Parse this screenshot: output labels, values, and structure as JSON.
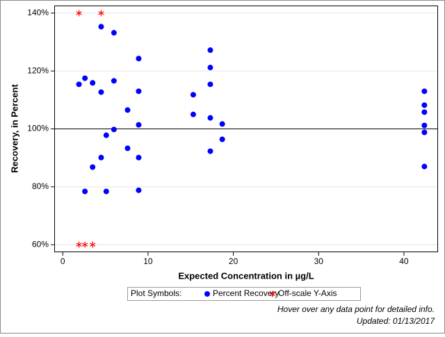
{
  "chart_data": {
    "type": "scatter",
    "x_label": "Expected Concentration in µg/L",
    "y_label": "Recovery, in Percent",
    "xlim": [
      -1,
      44
    ],
    "ylim": [
      57.4,
      142.6
    ],
    "xticks": [
      0,
      10,
      20,
      30,
      40
    ],
    "yticks": [
      {
        "value": 60,
        "label": "60%"
      },
      {
        "value": 80,
        "label": "80%"
      },
      {
        "value": 100,
        "label": "100%"
      },
      {
        "value": 120,
        "label": "120%"
      },
      {
        "value": 140,
        "label": "140%"
      }
    ],
    "grid": true,
    "reference_line": 100,
    "legend_title": "Plot Symbols:",
    "series": [
      {
        "name": "Percent Recovery",
        "color": "#0000ff",
        "marker": "circle",
        "x": [
          1.9,
          2.6,
          2.6,
          3.5,
          3.5,
          4.5,
          4.5,
          4.5,
          5.1,
          5.1,
          6.0,
          6.0,
          6.0,
          7.6,
          7.6,
          8.9,
          8.9,
          8.9,
          8.9,
          8.9,
          15.3,
          15.3,
          17.3,
          17.3,
          17.3,
          17.3,
          17.3,
          18.7,
          18.7,
          42.4,
          42.4,
          42.4,
          42.4,
          42.4,
          42.4
        ],
        "values": [
          115.4,
          117.5,
          78.4,
          115.9,
          86.8,
          135.3,
          112.7,
          90.1,
          97.8,
          78.4,
          133.2,
          116.6,
          99.8,
          106.5,
          93.3,
          124.3,
          113.0,
          101.4,
          90.1,
          78.8,
          111.8,
          105.0,
          127.2,
          121.2,
          115.4,
          103.8,
          92.3,
          101.7,
          96.4,
          113.0,
          108.2,
          105.8,
          101.2,
          98.8,
          87.0
        ]
      },
      {
        "name": "Off-scale Y-Axis",
        "color": "#ff0000",
        "marker": "star",
        "x": [
          1.9,
          4.5,
          1.9,
          2.6,
          3.5
        ],
        "values": [
          140,
          140,
          60,
          60,
          60
        ]
      }
    ],
    "notes": [
      "Hover over any data point for detailed info.",
      "Updated: 01/13/2017"
    ]
  }
}
